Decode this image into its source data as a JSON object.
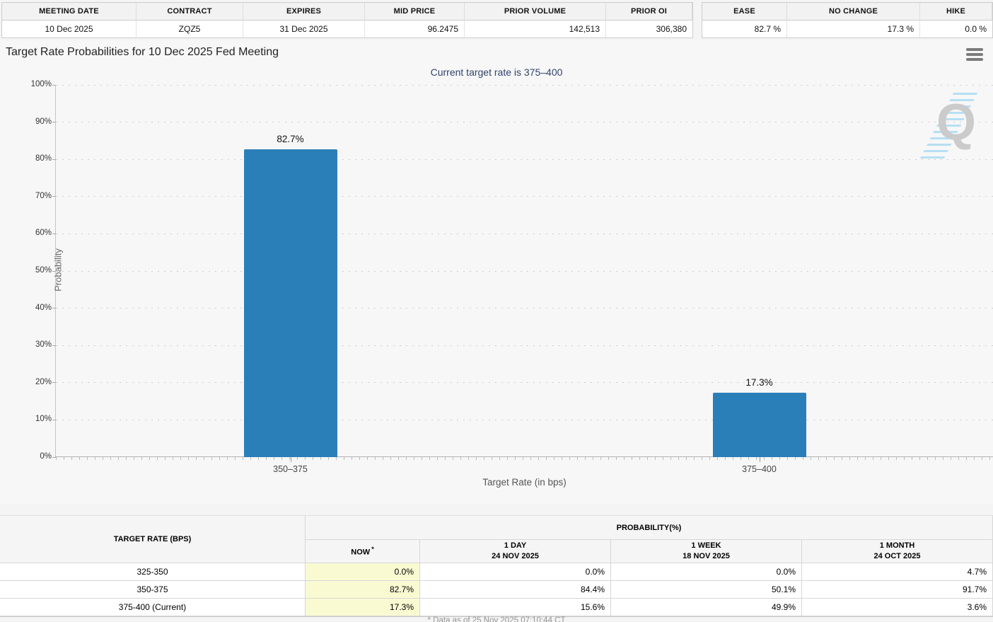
{
  "top_info_table": {
    "headers": [
      "MEETING DATE",
      "CONTRACT",
      "EXPIRES",
      "MID PRICE",
      "PRIOR VOLUME",
      "PRIOR OI"
    ],
    "values": [
      "10 Dec 2025",
      "ZQZ5",
      "31 Dec 2025",
      "96.2475",
      "142,513",
      "306,380"
    ]
  },
  "top_move_table": {
    "headers": [
      "EASE",
      "NO CHANGE",
      "HIKE"
    ],
    "values": [
      "82.7 %",
      "17.3 %",
      "0.0 %"
    ]
  },
  "chart_data": {
    "type": "bar",
    "title": "Target Rate Probabilities for 10 Dec 2025 Fed Meeting",
    "subtitle": "Current target rate is 375–400",
    "categories": [
      "350–375",
      "375–400"
    ],
    "values": [
      82.7,
      17.3
    ],
    "value_labels": [
      "82.7%",
      "17.3%"
    ],
    "xlabel": "Target Rate (in bps)",
    "ylabel": "Probability",
    "ylim": [
      0,
      100
    ],
    "ytick_step": 10,
    "ytick_suffix": "%",
    "bar_color": "#2b7fb9",
    "grid": "horizontal-dotted",
    "legend": "none"
  },
  "watermark_letter": "Q",
  "bottom_table": {
    "col1_header": "TARGET RATE (BPS)",
    "group_header": "PROBABILITY(%)",
    "subheaders": [
      {
        "line1": "NOW",
        "sup": "*",
        "line2": ""
      },
      {
        "line1": "1 DAY",
        "line2": "24 NOV 2025"
      },
      {
        "line1": "1 WEEK",
        "line2": "18 NOV 2025"
      },
      {
        "line1": "1 MONTH",
        "line2": "24 OCT 2025"
      }
    ],
    "rows": [
      {
        "target_rate": "325-350",
        "now": "0.0%",
        "day": "0.0%",
        "week": "0.0%",
        "month": "4.7%"
      },
      {
        "target_rate": "350-375",
        "now": "82.7%",
        "day": "84.4%",
        "week": "50.1%",
        "month": "91.7%"
      },
      {
        "target_rate": "375-400 (Current)",
        "now": "17.3%",
        "day": "15.6%",
        "week": "49.9%",
        "month": "3.6%"
      }
    ]
  },
  "footnote": "* Data as of 25 Nov 2025 07:10:44 CT",
  "colors": {
    "bar": "#2b7fb9",
    "now_highlight": "#fafad2",
    "subtitle": "#32426b"
  }
}
